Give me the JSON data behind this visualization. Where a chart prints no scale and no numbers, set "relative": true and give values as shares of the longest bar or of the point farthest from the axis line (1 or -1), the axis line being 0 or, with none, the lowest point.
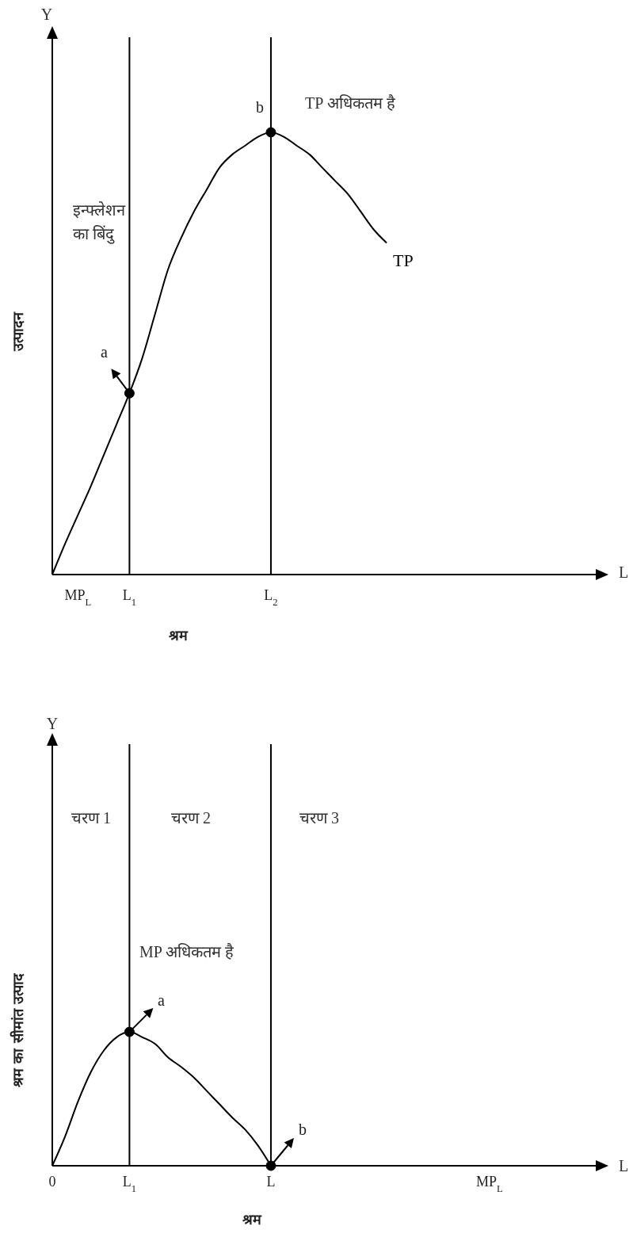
{
  "chart_data": [
    {
      "type": "line",
      "xlabel": "श्रम",
      "ylabel": "उत्पादन",
      "relative": true,
      "categories": [
        null,
        null,
        "MP$_{L}$",
        null,
        null,
        null,
        "L$_{1}$",
        null,
        null,
        null,
        null,
        null,
        null,
        null,
        null,
        null,
        null,
        "L$_{2}$",
        null,
        null,
        null,
        null,
        null,
        null,
        null,
        null,
        null,
        null,
        null,
        null,
        null,
        null,
        null,
        null,
        null,
        null,
        null,
        null,
        null,
        null,
        null,
        null,
        null,
        null
      ],
      "series": [
        {
          "name": "TP",
          "color": "#000000",
          "values": [
            0,
            0.07,
            0.135,
            0.2,
            0.27,
            0.34,
            0.41,
            0.49,
            0.59,
            0.69,
            0.76,
            0.82,
            0.87,
            0.92,
            0.95,
            0.97,
            0.99,
            1,
            0.99,
            0.97,
            0.95,
            0.92,
            0.89,
            0.86,
            0.82,
            0.78,
            0.75,
            null,
            null,
            null,
            null,
            null,
            null,
            null,
            null,
            null,
            null,
            null,
            null,
            null,
            null,
            null,
            null,
            null
          ]
        }
      ],
      "ref_lines": [
        {
          "axis": "x",
          "value": "L$_{1}$",
          "color": "#000000"
        },
        {
          "axis": "x",
          "value": "L$_{2}$",
          "color": "#000000"
        }
      ],
      "annotations": [
        {
          "text": "b",
          "x": "L$_{2}$",
          "y": 1
        },
        "TP अधिकतम है",
        "इन्फ्लेशन का बिंदु",
        {
          "text": "a",
          "x": "L$_{1}$",
          "y": 0.41
        },
        "Y",
        "L"
      ]
    },
    {
      "type": "line",
      "xlabel": "श्रम",
      "ylabel": "श्रम का सीमांत उत्पाद",
      "relative": true,
      "categories": [
        "0",
        null,
        null,
        null,
        null,
        null,
        "L$_{1}$",
        null,
        null,
        null,
        null,
        null,
        null,
        null,
        null,
        null,
        null,
        "L",
        null,
        null,
        null,
        null,
        null,
        null,
        null,
        null,
        null,
        null,
        null,
        null,
        null,
        null,
        null,
        null,
        "MP$_{L}$",
        null,
        null,
        null,
        null,
        null,
        null,
        null,
        null,
        null
      ],
      "series": [
        {
          "color": "#000000",
          "values": [
            0,
            0.22,
            0.48,
            0.7,
            0.86,
            0.96,
            1,
            0.96,
            0.91,
            0.81,
            0.74,
            0.66,
            0.56,
            0.46,
            0.36,
            0.27,
            0.15,
            0,
            null,
            null,
            null,
            null,
            null,
            null,
            null,
            null,
            null,
            null,
            null,
            null,
            null,
            null,
            null,
            null,
            null,
            null,
            null,
            null,
            null,
            null,
            null,
            null,
            null,
            null
          ]
        }
      ],
      "ref_lines": [
        {
          "axis": "x",
          "value": "L$_{1}$",
          "color": "#000000"
        },
        {
          "axis": "x",
          "value": "L",
          "color": "#000000"
        }
      ],
      "annotations": [
        {
          "text": "a",
          "x": "L$_{1}$",
          "y": 1
        },
        {
          "text": "b",
          "x": "L",
          "y": 0
        },
        "चरण 1",
        "चरण 2",
        "चरण 3",
        "MP अधिकतम है",
        "Y",
        "L"
      ]
    }
  ]
}
